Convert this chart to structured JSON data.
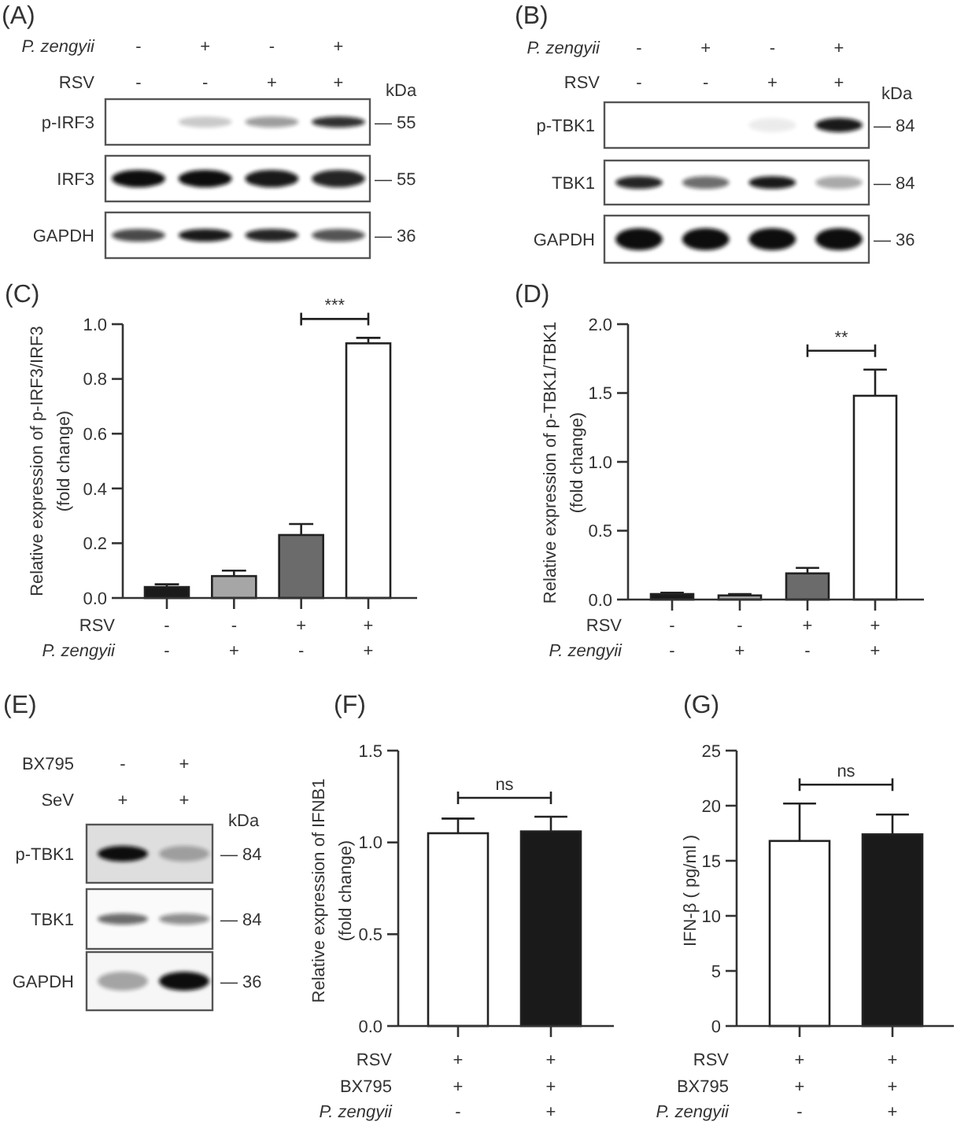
{
  "chart_data": [
    {
      "type": "other",
      "title": "(A)",
      "categories": [
        "-\n-",
        "+\n-",
        "-\n+",
        "+\n+"
      ],
      "annotations": [
        "P. zengyii",
        "RSV",
        "kDa"
      ],
      "y_categories": [
        "p-IRF3",
        "IRF3",
        "GAPDH"
      ],
      "y2_categories": [
        "— 55",
        "— 55",
        "— 36"
      ]
    },
    {
      "type": "other",
      "title": "(B)",
      "categories": [
        "-\n-",
        "+\n-",
        "-\n+",
        "+\n+"
      ],
      "annotations": [
        "P. zengyii",
        "RSV",
        "kDa"
      ],
      "y_categories": [
        "p-TBK1",
        "TBK1",
        "GAPDH"
      ],
      "y2_categories": [
        "— 84",
        "— 84",
        "— 36"
      ]
    },
    {
      "type": "bar",
      "title": "(C)",
      "ylabel": "Relative expression of p-IRF3/IRF3\n(fold change)",
      "categories": [
        "-\n-",
        "-\n+",
        "+\n-",
        "+\n+"
      ],
      "values": [
        0.04,
        0.08,
        0.23,
        0.93
      ],
      "colors": [
        "#1a1a1a",
        "#a6a6a6",
        "#6b6b6b",
        "#ffffff"
      ],
      "errors": [
        [
          0.04,
          0.05
        ],
        [
          0.08,
          0.1
        ],
        [
          0.23,
          0.27
        ],
        [
          0.93,
          0.95
        ]
      ],
      "ylim": [
        0,
        1
      ],
      "yticks": [
        {
          "value": 0,
          "label": "0.0"
        },
        0.2,
        0.4,
        0.6,
        0.8,
        {
          "value": 1,
          "label": "1.0"
        }
      ],
      "annotations": [
        "RSV",
        "P. zengyii",
        "***"
      ]
    },
    {
      "type": "bar",
      "title": "(D)",
      "ylabel": "Relative expression of p-TBK1/TBK1\n(fold change)",
      "categories": [
        "-\n-",
        "-\n+",
        "+\n-",
        "+\n+"
      ],
      "values": [
        0.04,
        0.03,
        0.19,
        1.48
      ],
      "colors": [
        "#1a1a1a",
        "#a6a6a6",
        "#6b6b6b",
        "#ffffff"
      ],
      "errors": [
        [
          0.04,
          0.05
        ],
        [
          0.03,
          0.04
        ],
        [
          0.19,
          0.23
        ],
        [
          1.48,
          1.67
        ]
      ],
      "ylim": [
        0,
        2
      ],
      "yticks": [
        {
          "value": 0,
          "label": "0.0"
        },
        0.5,
        {
          "value": 1,
          "label": "1.0"
        },
        1.5,
        {
          "value": 2,
          "label": "2.0"
        }
      ],
      "annotations": [
        "RSV",
        "P. zengyii",
        "**"
      ]
    },
    {
      "type": "other",
      "title": "(E)",
      "categories": [
        "-\n+",
        "+\n+"
      ],
      "annotations": [
        "BX795",
        "SeV",
        "kDa"
      ],
      "y_categories": [
        "p-TBK1",
        "TBK1",
        "GAPDH"
      ],
      "y2_categories": [
        "— 84",
        "— 84",
        "— 36"
      ]
    },
    {
      "type": "bar",
      "title": "(F)",
      "ylabel": "Relative expression of IFNB1\n(fold change)",
      "categories": [
        "+\n+\n-",
        "+\n+\n+"
      ],
      "values": [
        1.05,
        1.06
      ],
      "colors": [
        "#ffffff",
        "#1a1a1a"
      ],
      "errors": [
        [
          1.05,
          1.13
        ],
        [
          1.06,
          1.14
        ]
      ],
      "ylim": [
        0,
        1.5
      ],
      "yticks": [
        {
          "value": 0,
          "label": "0.0"
        },
        0.5,
        {
          "value": 1,
          "label": "1.0"
        },
        1.5
      ],
      "annotations": [
        "RSV",
        "BX795",
        "P. zengyii",
        "ns"
      ]
    },
    {
      "type": "bar",
      "title": "(G)",
      "ylabel": "IFN-β ( pg/ml )",
      "categories": [
        "+\n+\n-",
        "+\n+\n+"
      ],
      "values": [
        16.8,
        17.4
      ],
      "colors": [
        "#ffffff",
        "#1a1a1a"
      ],
      "errors": [
        [
          16.8,
          20.2
        ],
        [
          17.4,
          19.2
        ]
      ],
      "ylim": [
        0,
        25
      ],
      "yticks": [
        0,
        5,
        10,
        15,
        20,
        25
      ],
      "annotations": [
        "RSV",
        "BX795",
        "P. zengyii",
        "ns"
      ]
    }
  ]
}
